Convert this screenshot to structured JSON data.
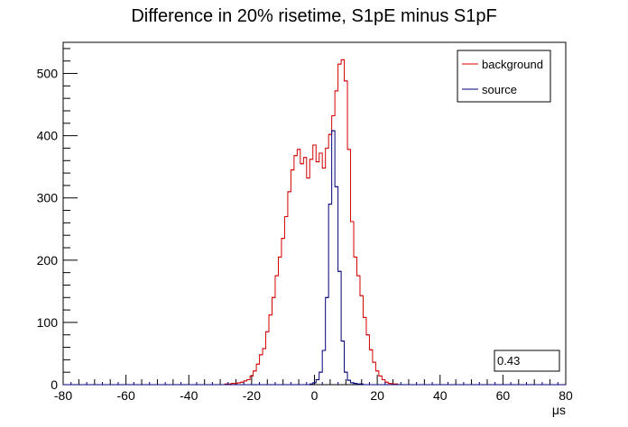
{
  "chart_data": {
    "type": "line",
    "title": "Difference in 20% risetime, S1pE minus S1pF",
    "xlabel": "μs",
    "ylabel": "",
    "xlim": [
      -80,
      80
    ],
    "ylim": [
      0,
      550
    ],
    "x_ticks": [
      -80,
      -60,
      -40,
      -20,
      0,
      20,
      40,
      60,
      80
    ],
    "y_ticks": [
      0,
      100,
      200,
      300,
      400,
      500
    ],
    "grid": false,
    "legend_position": "top-right",
    "stat_box": "0.43",
    "series": [
      {
        "name": "background",
        "color": "#d40000",
        "x": [
          -30,
          -29,
          -28,
          -27,
          -26,
          -25,
          -24,
          -23,
          -22,
          -21,
          -20,
          -19,
          -18,
          -17,
          -16,
          -15,
          -14,
          -13,
          -12,
          -11,
          -10,
          -9,
          -8,
          -7,
          -6,
          -5,
          -4,
          -3,
          -2,
          -1,
          0,
          1,
          2,
          3,
          4,
          5,
          6,
          7,
          8,
          9,
          10,
          11,
          12,
          13,
          14,
          15,
          16,
          17,
          18,
          19,
          20,
          21,
          22,
          23,
          24,
          25,
          26,
          27,
          28
        ],
        "values": [
          0,
          0,
          1,
          1,
          2,
          2,
          3,
          4,
          6,
          8,
          14,
          22,
          33,
          48,
          58,
          85,
          112,
          140,
          175,
          205,
          235,
          270,
          310,
          345,
          368,
          378,
          355,
          365,
          332,
          362,
          385,
          358,
          372,
          348,
          380,
          402,
          432,
          472,
          515,
          522,
          488,
          378,
          262,
          205,
          175,
          143,
          108,
          80,
          56,
          36,
          22,
          14,
          8,
          4,
          2,
          1,
          1,
          0,
          0
        ]
      },
      {
        "name": "source",
        "color": "#00007a",
        "x": [
          -2,
          -1,
          0,
          1,
          2,
          3,
          4,
          5,
          6,
          7,
          8,
          9,
          10,
          11,
          12,
          13,
          14,
          15,
          16
        ],
        "values": [
          0,
          1,
          3,
          8,
          20,
          55,
          140,
          290,
          408,
          318,
          182,
          70,
          20,
          7,
          3,
          2,
          1,
          1,
          0
        ]
      }
    ]
  }
}
